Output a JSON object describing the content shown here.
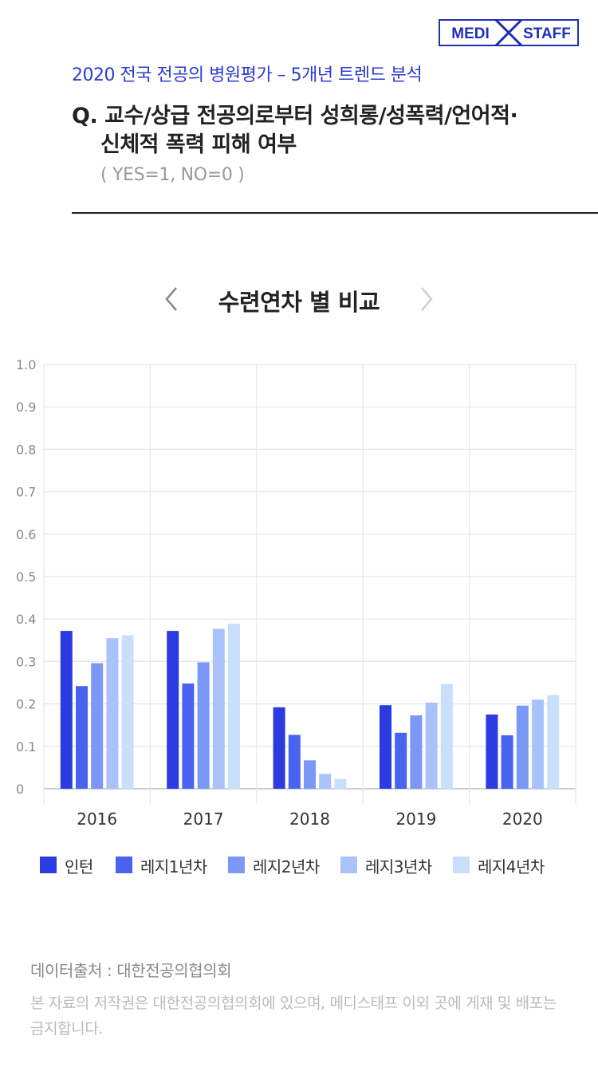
{
  "brand": {
    "logo_left": "MEDI",
    "logo_right": "STAFF",
    "color": "#1f2fb8"
  },
  "header": {
    "subtitle": "2020 전국 전공의 병원평가 – 5개년 트렌드 분석",
    "question_line1": "Q. 교수/상급 전공의로부터 성희롱/성폭력/언어적·",
    "question_line2": "신체적 폭력 피해 여부",
    "note": "( YES=1, NO=0 )"
  },
  "section": {
    "title": "수련연차 별 비교",
    "prev_icon": "chevron-left-icon",
    "next_icon": "chevron-right-icon"
  },
  "chart_data": {
    "type": "bar",
    "title": "",
    "xlabel": "",
    "ylabel": "",
    "categories": [
      "2016",
      "2017",
      "2018",
      "2019",
      "2020"
    ],
    "ylim": [
      0,
      1.0
    ],
    "yticks": [
      "0",
      "0.1",
      "0.2",
      "0.3",
      "0.4",
      "0.5",
      "0.6",
      "0.7",
      "0.8",
      "0.9",
      "1.0"
    ],
    "grid": true,
    "legend_position": "bottom",
    "series": [
      {
        "name": "인턴",
        "color": "#2b3be0",
        "values": [
          0.372,
          0.372,
          0.192,
          0.197,
          0.175
        ]
      },
      {
        "name": "레지1년차",
        "color": "#4a62f0",
        "values": [
          0.242,
          0.248,
          0.127,
          0.132,
          0.126
        ]
      },
      {
        "name": "레지2년차",
        "color": "#7b98f7",
        "values": [
          0.296,
          0.298,
          0.067,
          0.173,
          0.196
        ]
      },
      {
        "name": "레지3년차",
        "color": "#a9c3fa",
        "values": [
          0.355,
          0.377,
          0.035,
          0.203,
          0.21
        ]
      },
      {
        "name": "레지4년차",
        "color": "#c9e0fd",
        "values": [
          0.362,
          0.389,
          0.023,
          0.247,
          0.221
        ]
      }
    ]
  },
  "footer": {
    "source": "데이터출처 : 대한전공의협의회",
    "copyright": "본 자료의 저작권은 대한전공의협의회에 있으며, 메디스태프 이외 곳에 게재 및 배포는 금지합니다."
  }
}
